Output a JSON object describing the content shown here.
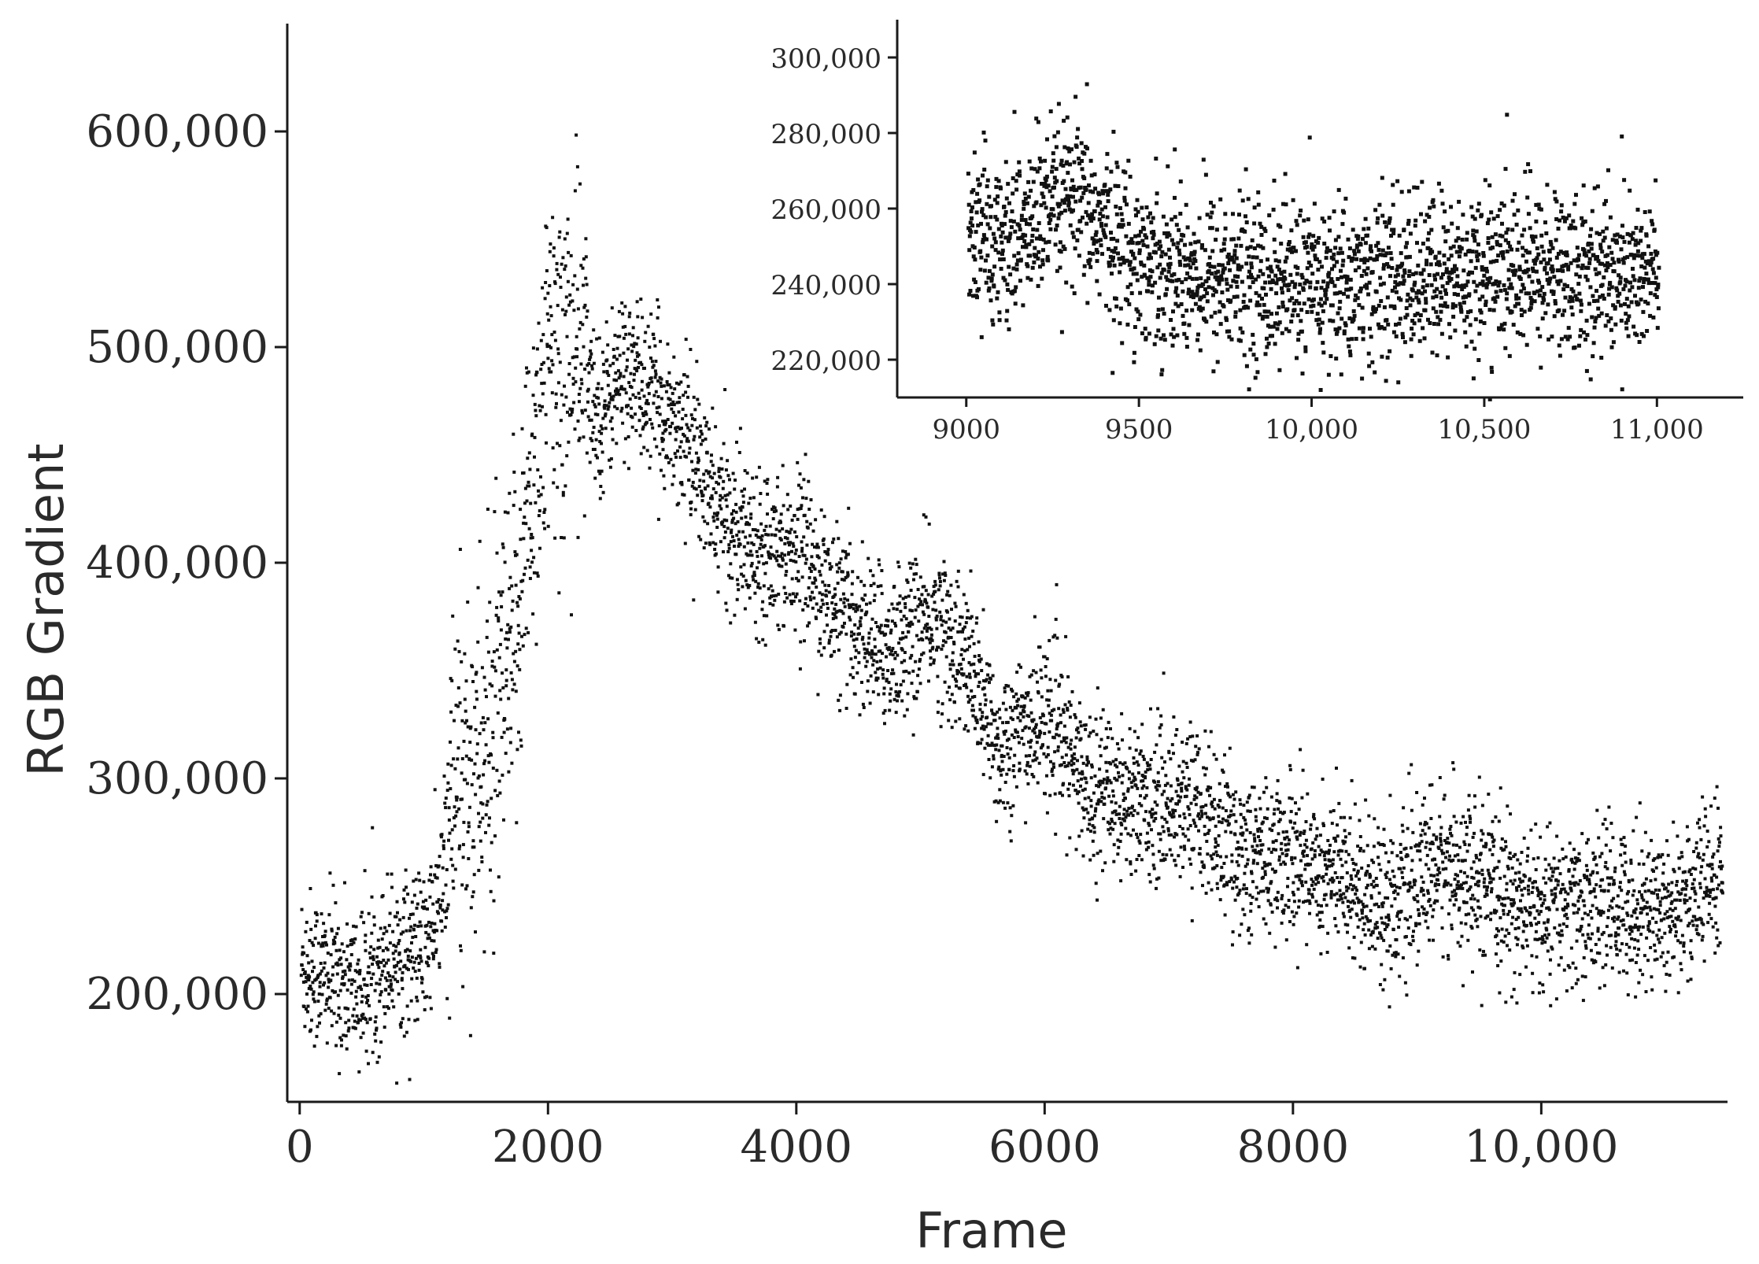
{
  "chart_data": [
    {
      "type": "scatter",
      "title": "",
      "xlabel": "Frame",
      "ylabel": "RGB Gradient",
      "xlim": [
        -100,
        11500
      ],
      "ylim": [
        150000,
        650000
      ],
      "x_ticks": [
        0,
        2000,
        4000,
        6000,
        8000,
        10000
      ],
      "x_tick_labels": [
        "0",
        "2000",
        "4000",
        "6000",
        "8000",
        "10,000"
      ],
      "y_ticks": [
        200000,
        300000,
        400000,
        500000,
        600000
      ],
      "y_tick_labels": [
        "200,000",
        "300,000",
        "400,000",
        "500,000",
        "600,000"
      ],
      "grid": false,
      "legend": "none",
      "point_color": "#111111",
      "series": [
        {
          "trend": [
            [
              0,
              215000
            ],
            [
              200,
              210000
            ],
            [
              500,
              203000
            ],
            [
              700,
              220000
            ],
            [
              1000,
              222000
            ],
            [
              1150,
              250000
            ],
            [
              1250,
              300000
            ],
            [
              1500,
              310000
            ],
            [
              1700,
              350000
            ],
            [
              1850,
              440000
            ],
            [
              2000,
              490000
            ],
            [
              2200,
              500000
            ],
            [
              2400,
              470000
            ],
            [
              2600,
              490000
            ],
            [
              2800,
              480000
            ],
            [
              3100,
              460000
            ],
            [
              3300,
              430000
            ],
            [
              3600,
              410000
            ],
            [
              4000,
              410000
            ],
            [
              4300,
              380000
            ],
            [
              4700,
              360000
            ],
            [
              5100,
              375000
            ],
            [
              5400,
              350000
            ],
            [
              5600,
              315000
            ],
            [
              6000,
              330000
            ],
            [
              6300,
              300000
            ],
            [
              6800,
              290000
            ],
            [
              7200,
              290000
            ],
            [
              7400,
              275000
            ],
            [
              7600,
              265000
            ],
            [
              8000,
              265000
            ],
            [
              8400,
              255000
            ],
            [
              8800,
              243000
            ],
            [
              9200,
              262000
            ],
            [
              9500,
              250000
            ],
            [
              10000,
              238000
            ],
            [
              10500,
              243000
            ],
            [
              11000,
              240000
            ],
            [
              11450,
              255000
            ]
          ],
          "spread": 18000
        }
      ]
    },
    {
      "type": "scatter",
      "title": "",
      "xlabel": "",
      "ylabel": "",
      "role": "inset",
      "xlim": [
        8800,
        11250
      ],
      "ylim": [
        210000,
        310000
      ],
      "x_ticks": [
        9000,
        9500,
        10000,
        10500,
        11000
      ],
      "x_tick_labels": [
        "9000",
        "9500",
        "10,000",
        "10,500",
        "11,000"
      ],
      "y_ticks": [
        220000,
        240000,
        260000,
        280000,
        300000
      ],
      "y_tick_labels": [
        "220,000",
        "240,000",
        "260,000",
        "280,000",
        "300,000"
      ],
      "grid": false,
      "legend": "none",
      "series": [
        {
          "trend": [
            [
              9000,
              255000
            ],
            [
              9100,
              250000
            ],
            [
              9200,
              258000
            ],
            [
              9300,
              262000
            ],
            [
              9400,
              255000
            ],
            [
              9500,
              247000
            ],
            [
              9700,
              243000
            ],
            [
              10000,
              240000
            ],
            [
              10300,
              242000
            ],
            [
              10600,
              244000
            ],
            [
              11000,
              243000
            ]
          ],
          "spread": 11000
        }
      ]
    }
  ]
}
